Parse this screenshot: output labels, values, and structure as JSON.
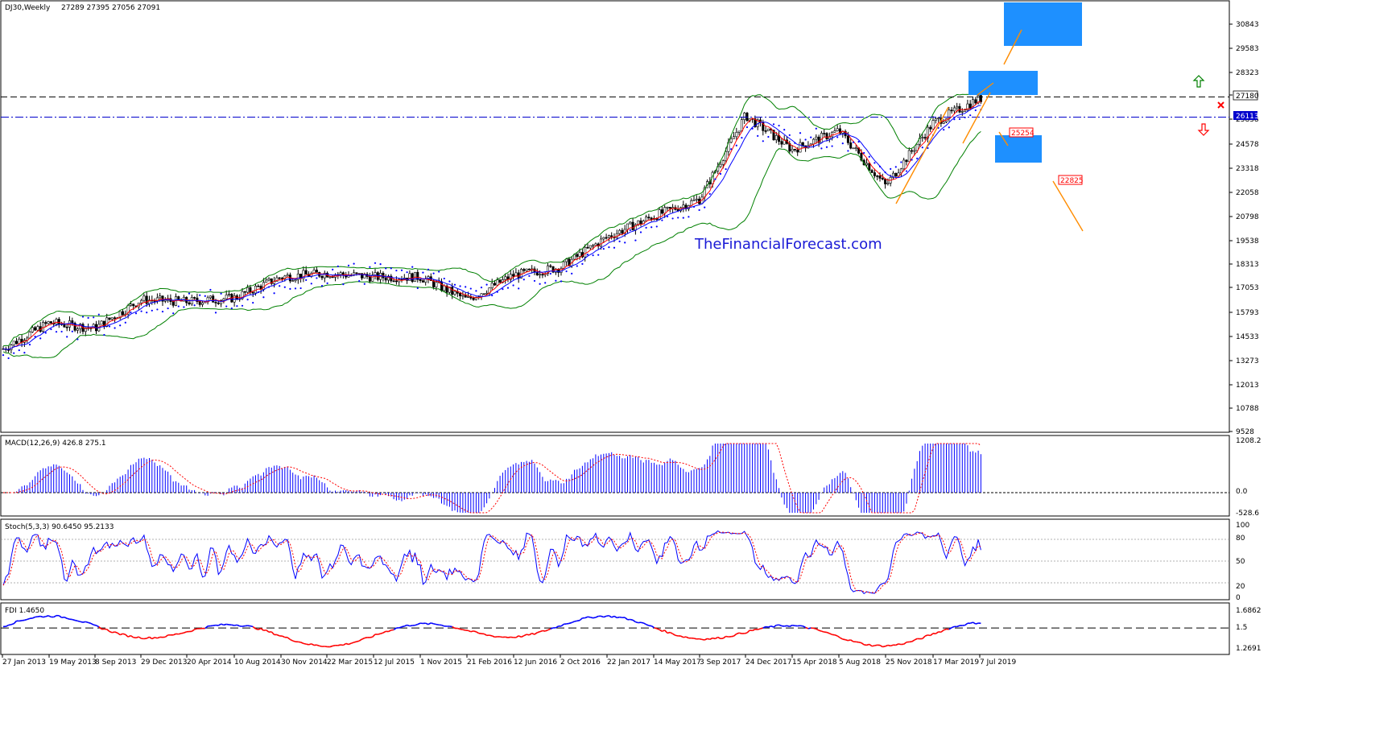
{
  "header": {
    "symbol": "DJ30,Weekly",
    "ohlc": "27289 27395 27056 27091"
  },
  "watermark": "TheFinancialForecast.com",
  "colors": {
    "up_candle": "#000000",
    "down_candle": "#000000",
    "bollinger": "#008000",
    "ma_fast": "#ff0000",
    "ma_slow": "#0000ff",
    "psar": "#0000ff",
    "target_box": "#1e90ff",
    "projection": "#ff8c00",
    "macd_hist": "#0000ff",
    "macd_signal": "#ff0000",
    "stoch_main": "#0000ff",
    "stoch_signal": "#ff0000",
    "fdi_up": "#0000ff",
    "fdi_down": "#ff0000",
    "marker_up": "#008000",
    "marker_down": "#ff0000"
  },
  "price_axis": {
    "ticks": [
      "30843",
      "29583",
      "28323",
      "27180",
      "25838",
      "24578",
      "23318",
      "22058",
      "20798",
      "19538",
      "18313",
      "17053",
      "15793",
      "14533",
      "13273",
      "12013",
      "10788",
      "9528"
    ],
    "current_label": "27180",
    "support_label": "26113",
    "ylim": [
      9528,
      31600
    ]
  },
  "levels": {
    "resistance": 27180,
    "support": 26113,
    "box_label_1": "25254",
    "box_label_2": "22825"
  },
  "time_axis": {
    "labels": [
      "27 Jan 2013",
      "19 May 2013",
      "8 Sep 2013",
      "29 Dec 2013",
      "20 Apr 2014",
      "10 Aug 2014",
      "30 Nov 2014",
      "22 Mar 2015",
      "12 Jul 2015",
      "1 Nov 2015",
      "21 Feb 2016",
      "12 Jun 2016",
      "2 Oct 2016",
      "22 Jan 2017",
      "14 May 2017",
      "3 Sep 2017",
      "24 Dec 2017",
      "15 Apr 2018",
      "5 Aug 2018",
      "25 Nov 2018",
      "17 Mar 2019",
      "7 Jul 2019"
    ]
  },
  "macd_panel": {
    "title": "MACD(12,26,9) 426.8 275.1",
    "ticks": [
      "1208.2",
      "0.0",
      "-528.6"
    ]
  },
  "stoch_panel": {
    "title": "Stoch(5,3,3) 90.6450 95.2133",
    "ticks": [
      "100",
      "80",
      "50",
      "20",
      "0"
    ]
  },
  "fdi_panel": {
    "title": "FDI 1.4650",
    "ticks": [
      "1.6862",
      "1.5",
      "1.2691"
    ]
  },
  "chart_data": {
    "type": "candlestick",
    "title": "DJ30,Weekly",
    "x_start": "27 Jan 2013",
    "x_end": "7 Jul 2019",
    "close_anchors": [
      [
        "27 Jan 2013",
        13900
      ],
      [
        "19 May 2013",
        15300
      ],
      [
        "8 Sep 2013",
        15000
      ],
      [
        "29 Dec 2013",
        16500
      ],
      [
        "20 Apr 2014",
        16400
      ],
      [
        "10 Aug 2014",
        16600
      ],
      [
        "30 Nov 2014",
        17700
      ],
      [
        "22 Mar 2015",
        17900
      ],
      [
        "12 Jul 2015",
        17700
      ],
      [
        "1 Nov 2015",
        17700
      ],
      [
        "21 Feb 2016",
        16500
      ],
      [
        "12 Jun 2016",
        17800
      ],
      [
        "2 Oct 2016",
        18200
      ],
      [
        "22 Jan 2017",
        19800
      ],
      [
        "14 May 2017",
        20900
      ],
      [
        "3 Sep 2017",
        21800
      ],
      [
        "24 Dec 2017",
        26200
      ],
      [
        "15 Apr 2018",
        24400
      ],
      [
        "5 Aug 2018",
        25400
      ],
      [
        "25 Nov 2018",
        22500
      ],
      [
        "17 Mar 2019",
        25800
      ],
      [
        "7 Jul 2019",
        27091
      ]
    ],
    "ylim": [
      9528,
      31600
    ]
  }
}
